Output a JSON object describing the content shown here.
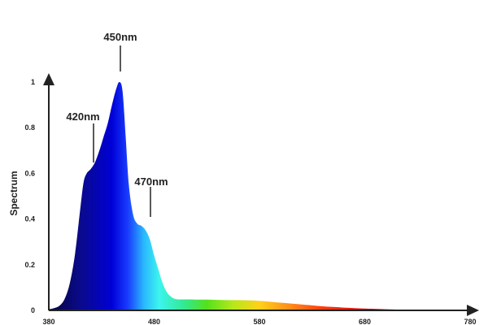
{
  "chart_data": {
    "type": "area",
    "title": "",
    "xlabel": "",
    "ylabel": "Spectrum",
    "xlim": [
      380,
      780
    ],
    "ylim": [
      0,
      1
    ],
    "x_ticks": [
      "380",
      "480",
      "580",
      "680",
      "780"
    ],
    "y_ticks": [
      "0",
      "0.2",
      "0.4",
      "0.6",
      "0.8",
      "1"
    ],
    "grid": false,
    "legend": "none",
    "fill": "wavelength-colored gradient",
    "series": [
      {
        "x": [
          380,
          385,
          390,
          395,
          400,
          405,
          410,
          413,
          416,
          420,
          424,
          428,
          432,
          436,
          440,
          444,
          447,
          450,
          453,
          456,
          460,
          464,
          468,
          472,
          476,
          480,
          484,
          488,
          492,
          496,
          500,
          505,
          510,
          515,
          520,
          530,
          540,
          550,
          560,
          570,
          580,
          590,
          600,
          610,
          620,
          630,
          640,
          650,
          660,
          670,
          680,
          700,
          720,
          740,
          760,
          780
        ],
        "y": [
          0.005,
          0.01,
          0.02,
          0.05,
          0.12,
          0.25,
          0.45,
          0.56,
          0.6,
          0.62,
          0.65,
          0.7,
          0.76,
          0.82,
          0.9,
          0.97,
          1.0,
          0.96,
          0.76,
          0.55,
          0.42,
          0.38,
          0.37,
          0.35,
          0.31,
          0.24,
          0.18,
          0.12,
          0.08,
          0.06,
          0.05,
          0.048,
          0.048,
          0.048,
          0.047,
          0.047,
          0.046,
          0.045,
          0.045,
          0.044,
          0.042,
          0.038,
          0.034,
          0.03,
          0.026,
          0.022,
          0.018,
          0.015,
          0.012,
          0.01,
          0.008,
          0.005,
          0.003,
          0.002,
          0.001,
          0.0
        ]
      }
    ],
    "annotations": [
      {
        "label": "420nm",
        "x": 420,
        "y": 0.62
      },
      {
        "label": "450nm",
        "x": 450,
        "y": 1.0
      },
      {
        "label": "470nm",
        "x": 470,
        "y": 0.36
      }
    ],
    "colors": {
      "axis": "#222222",
      "text": "#222222",
      "gradient": [
        {
          "nm": 380,
          "color": "#05053a"
        },
        {
          "nm": 410,
          "color": "#0a0a8c"
        },
        {
          "nm": 440,
          "color": "#0000d6"
        },
        {
          "nm": 455,
          "color": "#1a3cff"
        },
        {
          "nm": 470,
          "color": "#29b6ff"
        },
        {
          "nm": 485,
          "color": "#3cf5ee"
        },
        {
          "nm": 510,
          "color": "#33e88a"
        },
        {
          "nm": 530,
          "color": "#55e01c"
        },
        {
          "nm": 555,
          "color": "#b6e81a"
        },
        {
          "nm": 580,
          "color": "#ffd11a"
        },
        {
          "nm": 610,
          "color": "#ff8a1a"
        },
        {
          "nm": 640,
          "color": "#ff3a10"
        },
        {
          "nm": 680,
          "color": "#d40a0a"
        },
        {
          "nm": 780,
          "color": "#5a0000"
        }
      ]
    }
  }
}
